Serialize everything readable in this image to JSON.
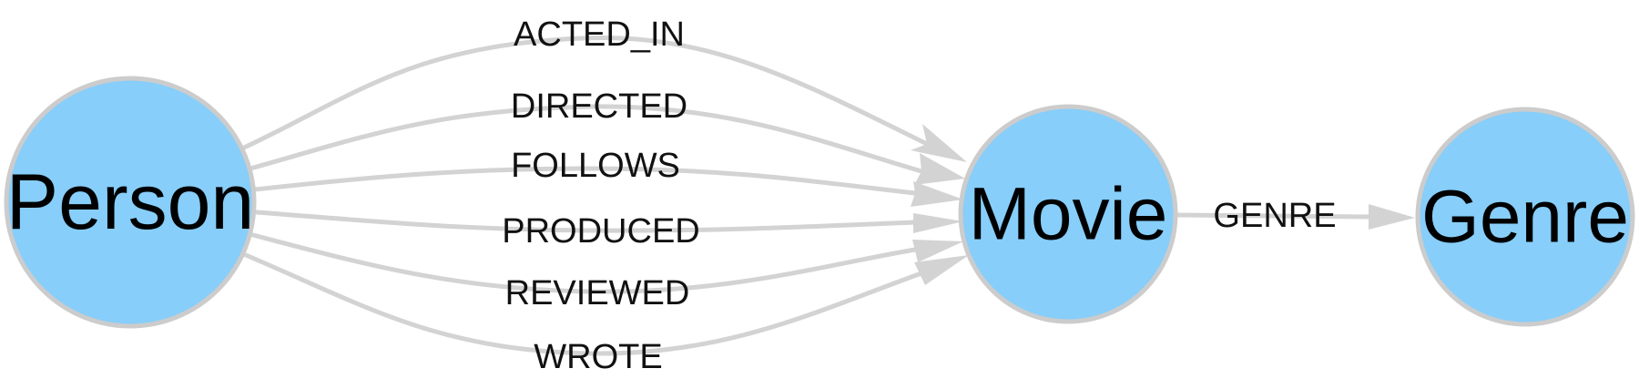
{
  "colors": {
    "node_fill": "#87cefa",
    "node_stroke": "#cccccc",
    "edge_stroke": "#d3d3d3",
    "label_text": "#111111"
  },
  "nodes": {
    "person": {
      "label": "Person"
    },
    "movie": {
      "label": "Movie"
    },
    "genre": {
      "label": "Genre"
    }
  },
  "edges": [
    {
      "label": "ACTED_IN",
      "source": "Person",
      "target": "Movie"
    },
    {
      "label": "DIRECTED",
      "source": "Person",
      "target": "Movie"
    },
    {
      "label": "FOLLOWS",
      "source": "Person",
      "target": "Movie"
    },
    {
      "label": "PRODUCED",
      "source": "Person",
      "target": "Movie"
    },
    {
      "label": "REVIEWED",
      "source": "Person",
      "target": "Movie"
    },
    {
      "label": "WROTE",
      "source": "Person",
      "target": "Movie"
    },
    {
      "label": "GENRE",
      "source": "Movie",
      "target": "Genre"
    }
  ]
}
